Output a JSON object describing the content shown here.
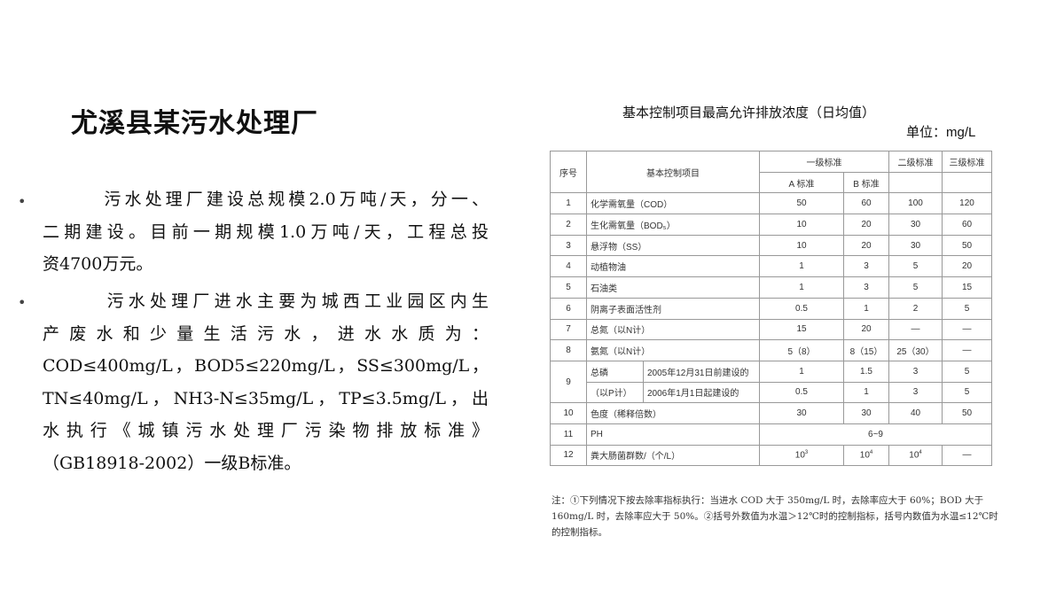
{
  "title": "尤溪县某污水处理厂",
  "bullets": [
    {
      "lines": [
        "　　　污水处理厂建设总规模2.0万吨/天，分一、",
        "二期建设。目前一期规模1.0万吨/天，工程总投",
        "资4700万元。"
      ]
    },
    {
      "lines": [
        "　　　污水处理厂进水主要为城西工业园区内生",
        "产废水和少量生活污水，进水水质为：",
        "COD≤400mg/L，BOD5≤220mg/L，SS≤300mg/L，",
        "TN≤40mg/L，NH3-N≤35mg/L，TP≤3.5mg/L，出",
        "水执行《城镇污水处理厂污染物排放标准》",
        "（GB18918-2002）一级B标准。"
      ]
    }
  ],
  "bullet_mark": "•",
  "table_caption": "基本控制项目最高允许排放浓度（日均值）",
  "unit": "单位：mg/L",
  "table": {
    "headers": {
      "no": "序号",
      "item": "基本控制项目",
      "grade1": "一级标准",
      "a": "A 标准",
      "b": "B 标准",
      "grade2": "二级标准",
      "grade3": "三级标准"
    },
    "rows": [
      {
        "no": "1",
        "item": "化学需氧量（COD）",
        "a": "50",
        "b": "60",
        "g2": "100",
        "g3": "120"
      },
      {
        "no": "2",
        "item": "生化需氧量（BOD₅）",
        "a": "10",
        "b": "20",
        "g2": "30",
        "g3": "60"
      },
      {
        "no": "3",
        "item": "悬浮物（SS）",
        "a": "10",
        "b": "20",
        "g2": "30",
        "g3": "50"
      },
      {
        "no": "4",
        "item": "动植物油",
        "a": "1",
        "b": "3",
        "g2": "5",
        "g3": "20"
      },
      {
        "no": "5",
        "item": "石油类",
        "a": "1",
        "b": "3",
        "g2": "5",
        "g3": "15"
      },
      {
        "no": "6",
        "item": "阴离子表面活性剂",
        "a": "0.5",
        "b": "1",
        "g2": "2",
        "g3": "5"
      },
      {
        "no": "7",
        "item": "总氮（以N计）",
        "a": "15",
        "b": "20",
        "g2": "—",
        "g3": "—"
      },
      {
        "no": "8",
        "item": "氨氮（以N计）",
        "a": "5（8）",
        "b": "8（15）",
        "g2": "25（30）",
        "g3": "—"
      }
    ],
    "row9": {
      "no": "9",
      "item1": "总磷",
      "item2": "（以P计）",
      "sub": [
        {
          "label": "2005年12月31日前建设的",
          "a": "1",
          "b": "1.5",
          "g2": "3",
          "g3": "5"
        },
        {
          "label": "2006年1月1日起建设的",
          "a": "0.5",
          "b": "1",
          "g2": "3",
          "g3": "5"
        }
      ]
    },
    "row10": {
      "no": "10",
      "item": "色度（稀释倍数）",
      "a": "30",
      "b": "30",
      "g2": "40",
      "g3": "50"
    },
    "row11": {
      "no": "11",
      "item": "PH",
      "value": "6~9"
    },
    "row12": {
      "no": "12",
      "item": "粪大肠菌群数/（个/L）",
      "a_base": "10",
      "a_exp": "3",
      "b_base": "10",
      "b_exp": "4",
      "g2_base": "10",
      "g2_exp": "4",
      "g3": "—"
    }
  },
  "note": "注：①下列情况下按去除率指标执行：当进水 COD 大于 350mg/L 时，去除率应大于 60%；BOD 大于 160mg/L 时，去除率应大于 50%。②括号外数值为水温＞12℃时的控制指标，括号内数值为水温≤12℃时的控制指标。"
}
